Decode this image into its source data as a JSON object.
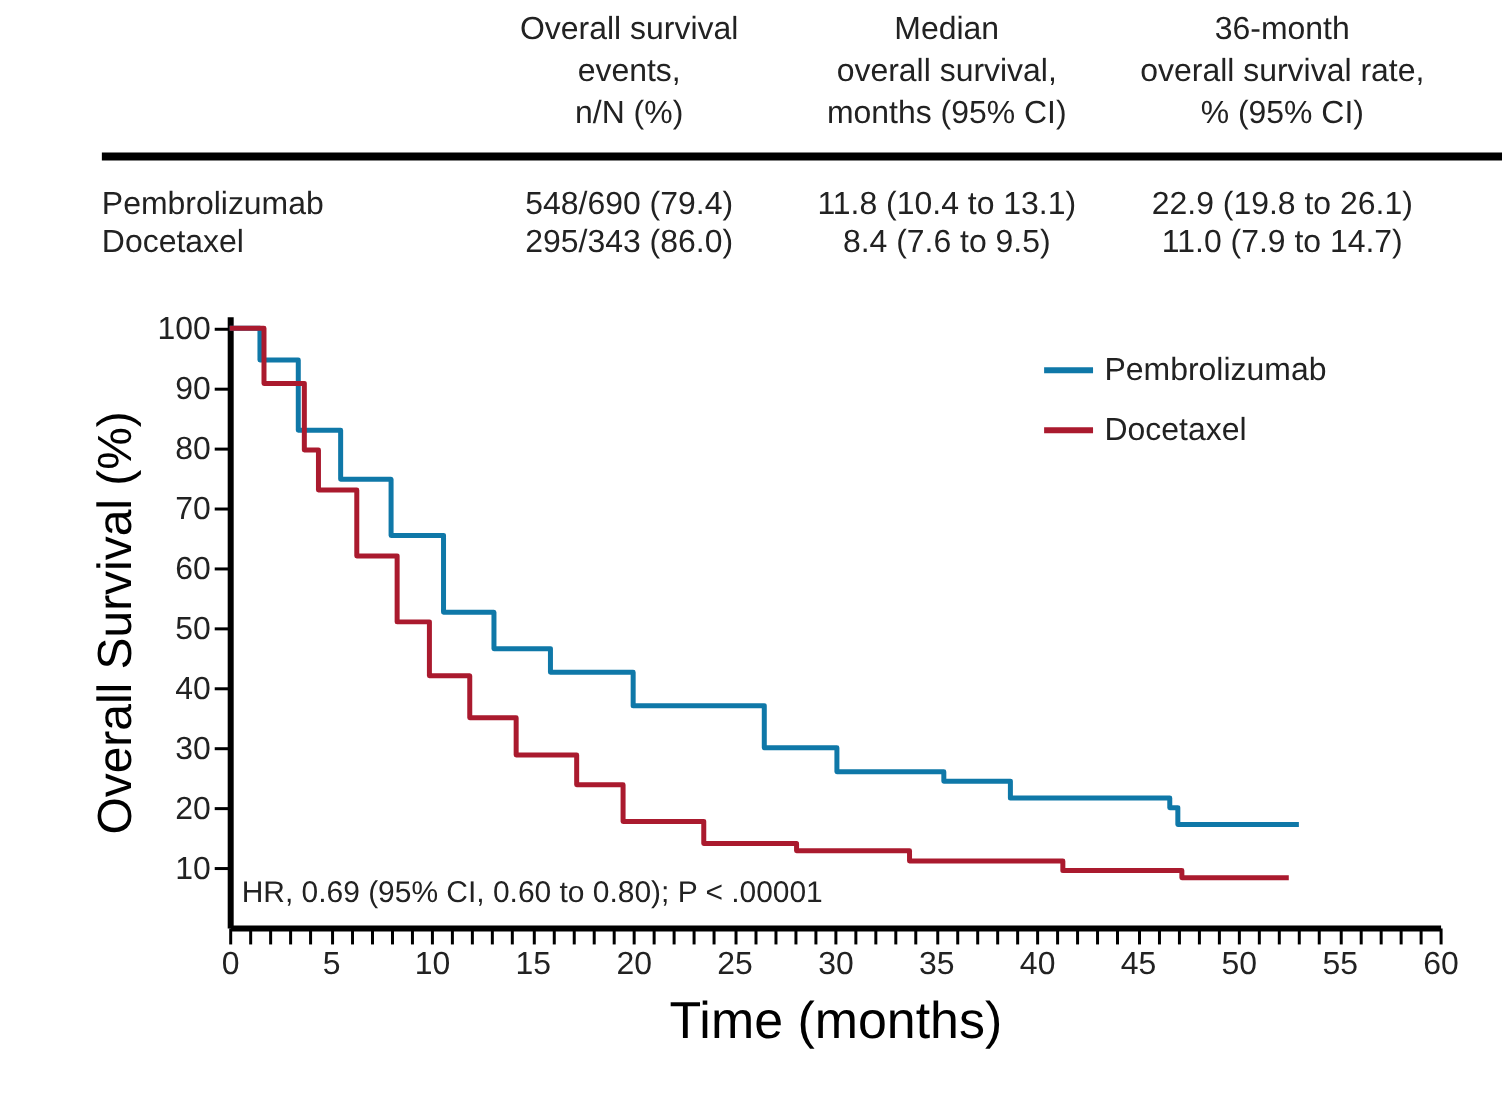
{
  "chart_data": {
    "type": "step",
    "xlabel": "Time (months)",
    "ylabel": "Overall Survival (%)",
    "xlim": [
      0,
      60
    ],
    "ylim": [
      0,
      102
    ],
    "xticks": [
      0,
      {
        "value": 1,
        "label": null
      },
      {
        "value": 2,
        "label": null
      },
      {
        "value": 3,
        "label": null
      },
      {
        "value": 4,
        "label": null
      },
      5,
      {
        "value": 6,
        "label": null
      },
      {
        "value": 7,
        "label": null
      },
      {
        "value": 8,
        "label": null
      },
      {
        "value": 9,
        "label": null
      },
      10,
      {
        "value": 11,
        "label": null
      },
      {
        "value": 12,
        "label": null
      },
      {
        "value": 13,
        "label": null
      },
      {
        "value": 14,
        "label": null
      },
      15,
      {
        "value": 16,
        "label": null
      },
      {
        "value": 17,
        "label": null
      },
      {
        "value": 18,
        "label": null
      },
      {
        "value": 19,
        "label": null
      },
      20,
      {
        "value": 21,
        "label": null
      },
      {
        "value": 22,
        "label": null
      },
      {
        "value": 23,
        "label": null
      },
      {
        "value": 24,
        "label": null
      },
      25,
      {
        "value": 26,
        "label": null
      },
      {
        "value": 27,
        "label": null
      },
      {
        "value": 28,
        "label": null
      },
      {
        "value": 29,
        "label": null
      },
      30,
      {
        "value": 31,
        "label": null
      },
      {
        "value": 32,
        "label": null
      },
      {
        "value": 33,
        "label": null
      },
      {
        "value": 34,
        "label": null
      },
      35,
      {
        "value": 36,
        "label": null
      },
      {
        "value": 37,
        "label": null
      },
      {
        "value": 38,
        "label": null
      },
      {
        "value": 39,
        "label": null
      },
      40,
      {
        "value": 41,
        "label": null
      },
      {
        "value": 42,
        "label": null
      },
      {
        "value": 43,
        "label": null
      },
      {
        "value": 44,
        "label": null
      },
      45,
      {
        "value": 46,
        "label": null
      },
      {
        "value": 47,
        "label": null
      },
      {
        "value": 48,
        "label": null
      },
      {
        "value": 49,
        "label": null
      },
      50,
      {
        "value": 51,
        "label": null
      },
      {
        "value": 52,
        "label": null
      },
      {
        "value": 53,
        "label": null
      },
      {
        "value": 54,
        "label": null
      },
      55,
      {
        "value": 56,
        "label": null
      },
      {
        "value": 57,
        "label": null
      },
      {
        "value": 58,
        "label": null
      },
      {
        "value": 59,
        "label": null
      },
      60
    ],
    "yticks": [
      10,
      20,
      30,
      40,
      50,
      60,
      70,
      80,
      90,
      100
    ],
    "grid": false,
    "legend": "top right",
    "line_style": "solid",
    "marker": "none",
    "series": [
      {
        "name": "Pembrolizumab",
        "color": "#0f78a8",
        "x": [
          0,
          1.5,
          3.4,
          5.5,
          8,
          10.6,
          13.1,
          15.9,
          20,
          26.5,
          30.1,
          35.4,
          38.7,
          46.6,
          47,
          53
        ],
        "values": [
          100,
          94.7,
          83,
          74.8,
          65.4,
          52.6,
          46.5,
          42.6,
          37,
          30,
          26,
          24.4,
          21.6,
          20,
          17.2,
          17.2
        ]
      },
      {
        "name": "Docetaxel",
        "color": "#aa1a2e",
        "x": [
          0,
          1.7,
          3.7,
          4.4,
          6.3,
          8.3,
          9.9,
          11.9,
          14.2,
          17.2,
          19.5,
          23.5,
          28.1,
          33.7,
          41.3,
          47.2,
          52.5
        ],
        "values": [
          100,
          90.8,
          79.7,
          73,
          62,
          51,
          42,
          35,
          28.8,
          23.8,
          17.7,
          14,
          12.8,
          11.1,
          9.5,
          8.3,
          8.3
        ]
      }
    ],
    "annotations": [
      "Overall survival\nevents,\nn/N (%)",
      "Median\noverall survival,\nmonths (95% CI)",
      "36-month\noverall survival rate,\n% (95% CI)",
      "Pembrolizumab",
      "548/690 (79.4)",
      "11.8 (10.4 to 13.1)",
      "22.9 (19.8 to 26.1)",
      "Docetaxel",
      "295/343 (86.0)",
      "8.4 (7.6 to 9.5)",
      "11.0 (7.9 to 14.7)",
      "HR, 0.69 (95% CI, 0.60 to 0.80); P < .00001"
    ]
  }
}
